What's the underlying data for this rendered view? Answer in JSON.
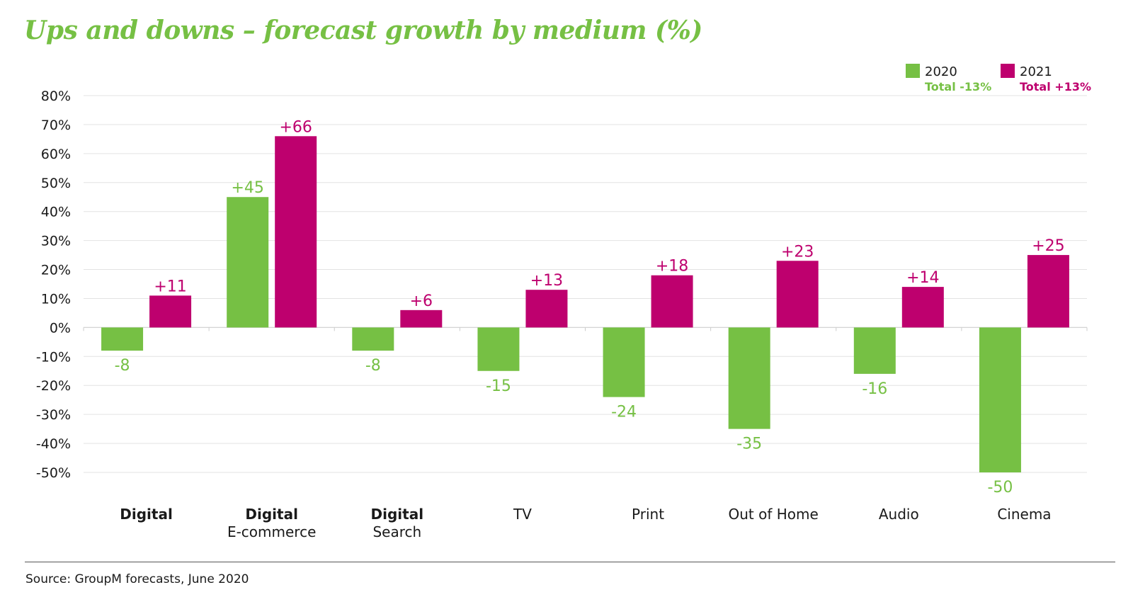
{
  "colors": {
    "series_2020": "#76C044",
    "series_2021": "#BE006E",
    "text": "#1a1a1a",
    "title": "#76C044",
    "grid": "#e3e3e3"
  },
  "source": "Source: GroupM forecasts, June 2020",
  "chart_data": {
    "type": "bar",
    "title": "Ups and downs – forecast growth by medium (%)",
    "categories": [
      {
        "bold": "Digital",
        "sub": ""
      },
      {
        "bold": "Digital",
        "sub": "E-commerce"
      },
      {
        "bold": "Digital",
        "sub": "Search"
      },
      {
        "bold": "",
        "sub": "TV"
      },
      {
        "bold": "",
        "sub": "Print"
      },
      {
        "bold": "",
        "sub": "Out of Home"
      },
      {
        "bold": "",
        "sub": "Audio"
      },
      {
        "bold": "",
        "sub": "Cinema"
      }
    ],
    "series": [
      {
        "name": "2020",
        "total": "Total -13%",
        "values": [
          -8,
          45,
          -8,
          -15,
          -24,
          -35,
          -16,
          -50
        ],
        "labels": [
          "-8",
          "+45",
          "-8",
          "-15",
          "-24",
          "-35",
          "-16",
          "-50"
        ]
      },
      {
        "name": "2021",
        "total": "Total +13%",
        "values": [
          11,
          66,
          6,
          13,
          18,
          23,
          14,
          25
        ],
        "labels": [
          "+11",
          "+66",
          "+6",
          "+13",
          "+18",
          "+23",
          "+14",
          "+25"
        ]
      }
    ],
    "ylim": [
      -50,
      80
    ],
    "yticks": [
      "80%",
      "70%",
      "60%",
      "50%",
      "40%",
      "30%",
      "20%",
      "10%",
      "0%",
      "-10%",
      "-20%",
      "-30%",
      "-40%",
      "-50%"
    ],
    "grid": true,
    "legend": "top-right"
  }
}
